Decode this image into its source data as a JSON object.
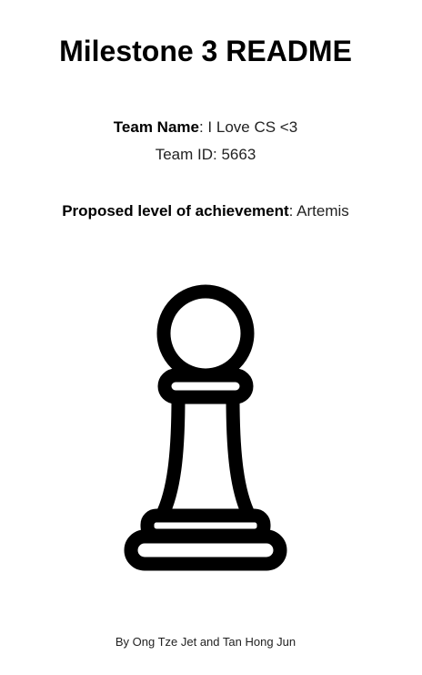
{
  "document": {
    "title": "Milestone 3 README",
    "team_name_label": "Team Name",
    "team_name_value": ": I Love CS <3",
    "team_id_text": "Team ID: 5663",
    "achievement_label": "Proposed level of achievement",
    "achievement_value": ": Artemis",
    "credit": "By Ong Tze Jet and Tan Hong Jun",
    "illustration_icon": "chess-pawn-icon",
    "ink_color": "#000000",
    "background_color": "#ffffff"
  }
}
